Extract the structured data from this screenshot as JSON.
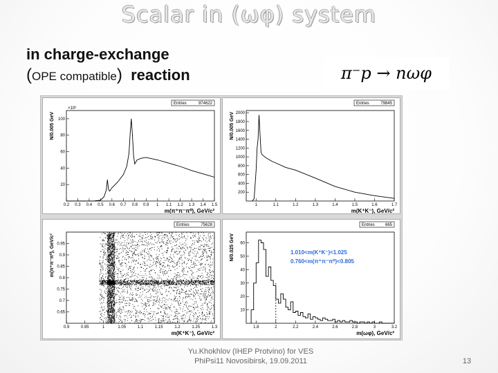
{
  "slide": {
    "title": "Scalar in (ωφ) system",
    "subtitle_line1": "in charge-exchange",
    "subtitle_open": "(",
    "subtitle_ope": "OPE  compatible",
    "subtitle_close": ")",
    "subtitle_reaction": "reaction",
    "formula": "π⁻p → nωφ",
    "footer_line1": "Yu.Khokhlov (IHEP Protvino) for VES",
    "footer_line2": "PhiPsi11   Novosibirsk, 19.09.2011",
    "page_number": "13"
  },
  "chart_data": [
    {
      "type": "line",
      "title": "",
      "xlabel": "m(π⁺π⁻π⁰), GeV/c²",
      "ylabel": "N/0.005 GeV",
      "y_multiplier": "×10³",
      "stat_label": "Entries",
      "stat_value": "974622",
      "xlim": [
        0.2,
        1.5
      ],
      "ylim": [
        0,
        110
      ],
      "x_ticks": [
        "0.2",
        "0.3",
        "0.4",
        "0.5",
        "0.6",
        "0.7",
        "0.8",
        "0.9",
        "1",
        "1.1",
        "1.2",
        "1.3",
        "1.4",
        "1.5"
      ],
      "y_ticks": [
        "20",
        "40",
        "60",
        "80",
        "100"
      ],
      "x": [
        0.2,
        0.35,
        0.44,
        0.5,
        0.53,
        0.55,
        0.56,
        0.57,
        0.58,
        0.6,
        0.65,
        0.7,
        0.73,
        0.75,
        0.76,
        0.77,
        0.78,
        0.79,
        0.8,
        0.82,
        0.86,
        0.9,
        1.0,
        1.1,
        1.2,
        1.3,
        1.4,
        1.5
      ],
      "y": [
        0,
        0,
        0,
        1,
        5,
        13,
        26,
        14,
        12,
        16,
        23,
        32,
        42,
        58,
        82,
        100,
        80,
        55,
        45,
        50,
        52,
        53,
        50,
        46,
        42,
        37,
        33,
        29
      ]
    },
    {
      "type": "line",
      "title": "",
      "xlabel": "m(K⁺K⁻), GeV/c²",
      "ylabel": "N/0.005 GeV",
      "stat_label": "Entries",
      "stat_value": "79845",
      "xlim": [
        0.95,
        1.7
      ],
      "ylim": [
        0,
        2050
      ],
      "x_ticks": [
        "1",
        "1.1",
        "1.2",
        "1.3",
        "1.4",
        "1.5",
        "1.6",
        "1.7"
      ],
      "y_ticks": [
        "200",
        "400",
        "600",
        "800",
        "1000",
        "1200",
        "1400",
        "1600",
        "1800",
        "2000"
      ],
      "x": [
        0.98,
        0.99,
        1.0,
        1.005,
        1.01,
        1.015,
        1.02,
        1.025,
        1.03,
        1.05,
        1.08,
        1.1,
        1.15,
        1.2,
        1.3,
        1.4,
        1.5,
        1.6,
        1.7
      ],
      "y": [
        0,
        50,
        700,
        1200,
        1400,
        1950,
        1500,
        1100,
        1050,
        980,
        900,
        860,
        760,
        700,
        520,
        330,
        200,
        120,
        60
      ]
    },
    {
      "type": "scatter",
      "title": "",
      "xlabel": "m(K⁺K⁻), GeV/c²",
      "ylabel": "m(π⁺π⁻π⁰), GeV/c²",
      "stat_label": "Entries",
      "stat_value": "75628",
      "xlim": [
        0.9,
        1.3
      ],
      "ylim": [
        0.6,
        1.0
      ],
      "x_ticks": [
        "0.9",
        "0.95",
        "1",
        "1.05",
        "1.1",
        "1.15",
        "1.2",
        "1.25",
        "1.3"
      ],
      "y_ticks": [
        "0.65",
        "0.7",
        "0.75",
        "0.8",
        "0.85",
        "0.9",
        "0.95"
      ],
      "bands": {
        "x_band": [
          1.01,
          1.03
        ],
        "y_band": [
          0.77,
          0.79
        ]
      }
    },
    {
      "type": "bar",
      "title": "",
      "xlabel": "m(ωφ), GeV/c²",
      "ylabel": "N/0.025 GeV",
      "stat_label": "Entries",
      "stat_value": "665",
      "annotation1": "1.010<m(K⁺K⁻)<1.025",
      "annotation2": "0.760<m(π⁺π⁻π⁰)<0.805",
      "annotation_color": "#2d6ad6",
      "xlim": [
        1.7,
        3.2
      ],
      "ylim": [
        0,
        68
      ],
      "x_ticks": [
        "1.8",
        "2",
        "2.2",
        "2.4",
        "2.6",
        "2.8",
        "3",
        "3.2"
      ],
      "y_ticks": [
        "10",
        "20",
        "30",
        "40",
        "50",
        "60"
      ],
      "dashed_line_x": 2.0,
      "bin_start": 1.75,
      "bin_width": 0.025,
      "values": [
        10,
        30,
        45,
        62,
        60,
        55,
        35,
        42,
        32,
        28,
        18,
        15,
        22,
        18,
        12,
        10,
        16,
        8,
        9,
        6,
        8,
        5,
        4,
        7,
        3,
        5,
        4,
        3,
        2,
        4,
        3,
        2,
        2,
        3,
        1,
        2,
        1,
        2,
        1,
        1,
        2,
        1,
        1,
        0,
        1,
        1,
        0,
        1,
        0,
        1,
        0,
        0,
        1,
        0,
        0,
        0,
        0,
        0
      ]
    }
  ]
}
